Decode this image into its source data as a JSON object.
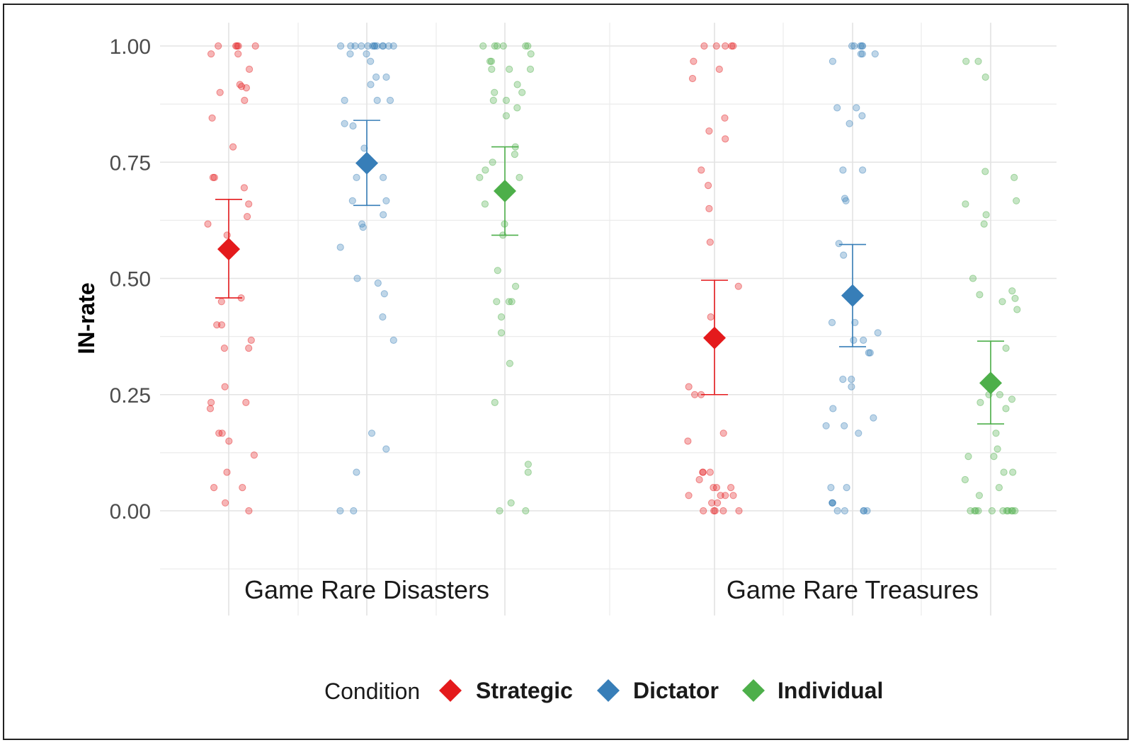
{
  "chart_data": {
    "type": "scatter",
    "title": "",
    "xlabel": "",
    "ylabel": "IN-rate",
    "ylim": [
      -0.13,
      1.05
    ],
    "yticks": [
      "0.00",
      "0.25",
      "0.50",
      "0.75",
      "1.00"
    ],
    "categories": [
      "Game Rare Disasters",
      "Game Rare Treasures"
    ],
    "legend": {
      "title": "Condition",
      "position": "bottom"
    },
    "series": [
      {
        "name": "Strategic",
        "color": "#e41a1c",
        "means": [
          {
            "category": "Game Rare Disasters",
            "mean": 0.563,
            "lower": 0.458,
            "upper": 0.67
          },
          {
            "category": "Game Rare Treasures",
            "mean": 0.372,
            "lower": 0.25,
            "upper": 0.496
          }
        ],
        "points": [
          [
            1.0,
            1.0,
            1.0,
            1.0,
            1.0,
            0.983,
            0.983,
            0.95,
            0.917,
            0.91,
            0.913,
            0.9,
            0.883,
            0.845,
            0.783,
            0.717,
            0.717,
            0.695,
            0.66,
            0.633,
            0.617,
            0.593,
            0.458,
            0.45,
            0.4,
            0.4,
            0.367,
            0.35,
            0.35,
            0.267,
            0.233,
            0.233,
            0.22,
            0.167,
            0.167,
            0.15,
            0.12,
            0.083,
            0.05,
            0.05,
            0.017,
            0.0
          ],
          [
            1.0,
            1.0,
            1.0,
            1.0,
            1.0,
            0.967,
            0.95,
            0.93,
            0.845,
            0.817,
            0.8,
            0.733,
            0.7,
            0.65,
            0.578,
            0.483,
            0.417,
            0.267,
            0.25,
            0.25,
            0.167,
            0.15,
            0.083,
            0.083,
            0.083,
            0.067,
            0.05,
            0.05,
            0.05,
            0.033,
            0.033,
            0.033,
            0.033,
            0.017,
            0.017,
            0.0,
            0.0,
            0.0,
            0.0,
            0.0
          ]
        ]
      },
      {
        "name": "Dictator",
        "color": "#377eb8",
        "means": [
          {
            "category": "Game Rare Disasters",
            "mean": 0.748,
            "lower": 0.657,
            "upper": 0.84
          },
          {
            "category": "Game Rare Treasures",
            "mean": 0.463,
            "lower": 0.353,
            "upper": 0.573
          }
        ],
        "points": [
          [
            1.0,
            1.0,
            1.0,
            1.0,
            1.0,
            1.0,
            1.0,
            1.0,
            1.0,
            1.0,
            1.0,
            1.0,
            1.0,
            0.983,
            0.983,
            0.967,
            0.933,
            0.933,
            0.917,
            0.883,
            0.883,
            0.883,
            0.833,
            0.828,
            0.78,
            0.717,
            0.717,
            0.667,
            0.667,
            0.637,
            0.617,
            0.61,
            0.567,
            0.5,
            0.49,
            0.467,
            0.417,
            0.367,
            0.167,
            0.133,
            0.083,
            0.0,
            0.0
          ],
          [
            1.0,
            1.0,
            1.0,
            1.0,
            1.0,
            0.983,
            0.983,
            0.983,
            0.967,
            0.867,
            0.867,
            0.85,
            0.833,
            0.733,
            0.733,
            0.672,
            0.667,
            0.575,
            0.55,
            0.405,
            0.405,
            0.383,
            0.367,
            0.367,
            0.34,
            0.34,
            0.283,
            0.283,
            0.267,
            0.22,
            0.2,
            0.183,
            0.183,
            0.167,
            0.05,
            0.05,
            0.017,
            0.017,
            0.017,
            0.0,
            0.0,
            0.0,
            0.0,
            0.0
          ]
        ]
      },
      {
        "name": "Individual",
        "color": "#4daf4a",
        "means": [
          {
            "category": "Game Rare Disasters",
            "mean": 0.688,
            "lower": 0.593,
            "upper": 0.783
          },
          {
            "category": "Game Rare Treasures",
            "mean": 0.275,
            "lower": 0.187,
            "upper": 0.365
          }
        ],
        "points": [
          [
            1.0,
            1.0,
            1.0,
            1.0,
            1.0,
            1.0,
            0.983,
            0.967,
            0.967,
            0.95,
            0.95,
            0.95,
            0.917,
            0.9,
            0.9,
            0.883,
            0.883,
            0.867,
            0.85,
            0.783,
            0.767,
            0.75,
            0.733,
            0.717,
            0.717,
            0.66,
            0.617,
            0.593,
            0.517,
            0.483,
            0.45,
            0.45,
            0.45,
            0.417,
            0.383,
            0.317,
            0.233,
            0.1,
            0.083,
            0.017,
            0.0,
            0.0
          ],
          [
            0.967,
            0.967,
            0.933,
            0.73,
            0.717,
            0.667,
            0.66,
            0.637,
            0.617,
            0.5,
            0.473,
            0.465,
            0.457,
            0.45,
            0.433,
            0.35,
            0.25,
            0.25,
            0.24,
            0.233,
            0.22,
            0.167,
            0.133,
            0.117,
            0.117,
            0.083,
            0.083,
            0.067,
            0.05,
            0.033,
            0.0,
            0.0,
            0.0,
            0.0,
            0.0,
            0.0,
            0.0,
            0.0,
            0.0,
            0.0,
            0.0
          ]
        ]
      }
    ]
  }
}
